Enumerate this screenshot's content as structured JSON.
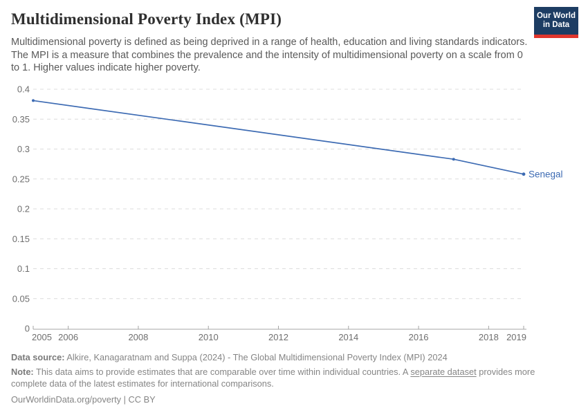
{
  "header": {
    "title": "Multidimensional Poverty Index (MPI)",
    "subtitle": "Multidimensional poverty is defined as being deprived in a range of health, education and living standards indicators. The MPI is a measure that combines the prevalence and the intensity of multidimensional poverty on a scale from 0 to 1. Higher values indicate higher poverty.",
    "logo": {
      "line1": "Our World",
      "line2": "in Data"
    }
  },
  "chart_data": {
    "type": "line",
    "title": "Multidimensional Poverty Index (MPI)",
    "xlabel": "",
    "ylabel": "",
    "xlim": [
      2005,
      2019
    ],
    "ylim": [
      0,
      0.4
    ],
    "grid": "dashed-horizontal",
    "legend_position": "end-of-line-label",
    "x_ticks": [
      2005,
      2006,
      2008,
      2010,
      2012,
      2014,
      2016,
      2018,
      2019
    ],
    "x_tick_labels": [
      "2005",
      "2006",
      "2008",
      "2010",
      "2012",
      "2014",
      "2016",
      "2018",
      "2019"
    ],
    "y_ticks": [
      0,
      0.05,
      0.1,
      0.15,
      0.2,
      0.25,
      0.3,
      0.35,
      0.4
    ],
    "y_tick_labels": [
      "0",
      "0.05",
      "0.1",
      "0.15",
      "0.2",
      "0.25",
      "0.3",
      "0.35",
      "0.4"
    ],
    "series": [
      {
        "name": "Senegal",
        "color": "#3d6bb3",
        "points": [
          {
            "x": 2005,
            "y": 0.381
          },
          {
            "x": 2017,
            "y": 0.283
          },
          {
            "x": 2019,
            "y": 0.258
          }
        ]
      }
    ]
  },
  "footer": {
    "datasource_label": "Data source:",
    "datasource_text": " Alkire, Kanagaratnam and Suppa (2024) - The Global Multidimensional Poverty Index (MPI) 2024",
    "note_label": "Note:",
    "note_before_link": " This data aims to provide estimates that are comparable over time within individual countries. A ",
    "note_link": "separate dataset",
    "note_after_link": " provides more complete data of the latest estimates for international comparisons.",
    "citation_link": "OurWorldinData.org/poverty",
    "citation_suffix": " | CC BY"
  },
  "colors": {
    "line": "#3d6bb3",
    "logo_bg": "#1d3d63",
    "logo_accent": "#e0362d",
    "title_text": "#2f2f2f",
    "subtitle_text": "#595959",
    "axis_text": "#6e6e6e",
    "gridline": "#dcdcdc",
    "axis_line": "#a5a5a5",
    "footer_text": "#858585"
  }
}
